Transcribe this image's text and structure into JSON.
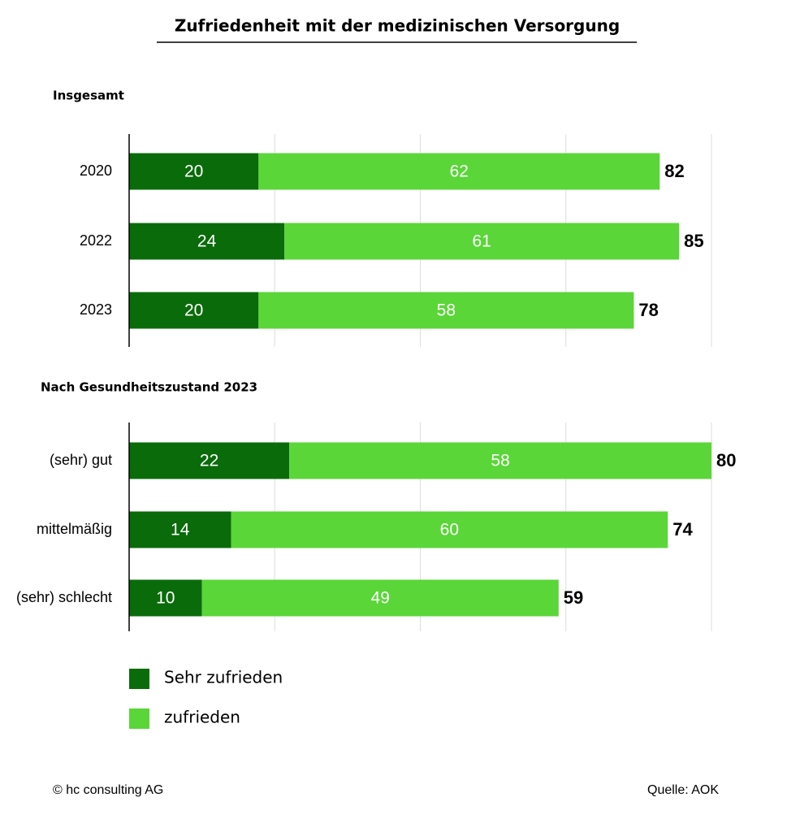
{
  "title": "Zufriedenheit mit der medizinischen Versorgung",
  "chart_data": [
    {
      "type": "stacked-bar-horizontal",
      "subtitle": "Insgesamt",
      "categories": [
        "2020",
        "2022",
        "2023"
      ],
      "series": [
        {
          "name": "Sehr zufrieden",
          "color": "#0a6b0a",
          "values": [
            20,
            24,
            20
          ]
        },
        {
          "name": "zufrieden",
          "color": "#5ad638",
          "values": [
            62,
            61,
            58
          ]
        }
      ],
      "totals": [
        82,
        85,
        78
      ],
      "xlim": [
        0,
        90
      ],
      "xticks": [
        0,
        22.5,
        45,
        67.5,
        90
      ],
      "grid": true
    },
    {
      "type": "stacked-bar-horizontal",
      "subtitle": "Nach Gesundheitszustand 2023",
      "categories": [
        "(sehr) gut",
        "mittelmäßig",
        "(sehr) schlecht"
      ],
      "series": [
        {
          "name": "Sehr zufrieden",
          "color": "#0a6b0a",
          "values": [
            22,
            14,
            10
          ]
        },
        {
          "name": "zufrieden",
          "color": "#5ad638",
          "values": [
            58,
            60,
            49
          ]
        }
      ],
      "totals": [
        80,
        74,
        59
      ],
      "xlim": [
        0,
        80
      ],
      "xticks": [
        0,
        20,
        40,
        60,
        80
      ],
      "grid": true
    }
  ],
  "footer": {
    "copyright": "© hc consulting AG",
    "source": "Quelle: AOK"
  }
}
